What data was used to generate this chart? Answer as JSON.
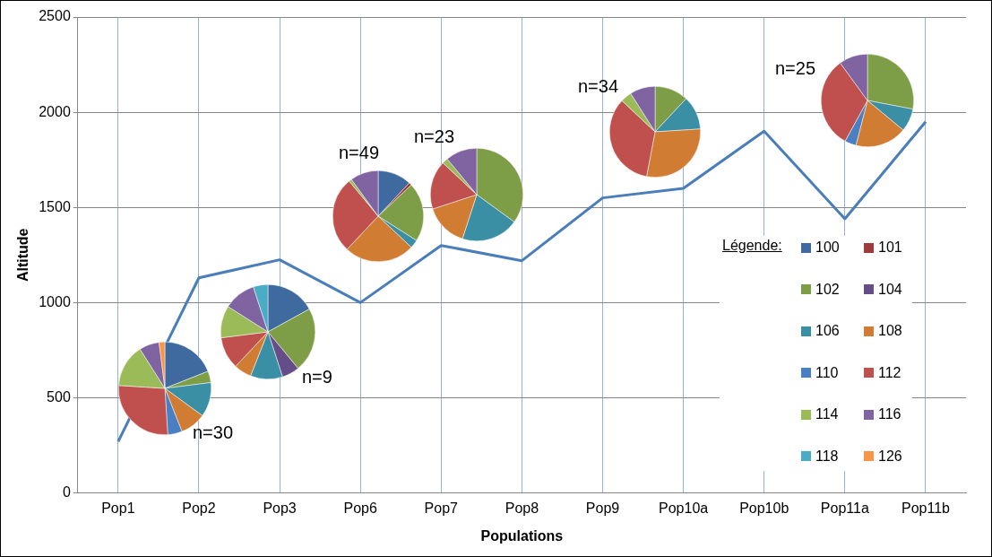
{
  "chart_data": [
    {
      "type": "line",
      "xlabel": "Populations",
      "ylabel": "Altitude",
      "categories": [
        "Pop1",
        "Pop2",
        "Pop3",
        "Pop6",
        "Pop7",
        "Pop8",
        "Pop9",
        "Pop10a",
        "Pop10b",
        "Pop11a",
        "Pop11b"
      ],
      "values": [
        270,
        1130,
        1225,
        1000,
        1300,
        1220,
        1550,
        1600,
        1900,
        1440,
        1950
      ],
      "color": "#4a7ebb",
      "ylim": [
        0,
        2500
      ],
      "yticks": [
        0,
        500,
        1000,
        1500,
        2000,
        2500
      ],
      "grid": true,
      "marker": "none",
      "legend": false
    },
    {
      "type": "pie",
      "legend": "right",
      "legend_title": "Légende:",
      "categories": [
        "100",
        "101",
        "102",
        "104",
        "106",
        "108",
        "110",
        "112",
        "114",
        "116",
        "118",
        "126"
      ],
      "colors": [
        "#3e6aa0",
        "#a0393a",
        "#7d9d46",
        "#654e87",
        "#3a8fa5",
        "#d07c33",
        "#4a7fc2",
        "#c0504d",
        "#9bbb59",
        "#8064a2",
        "#4bacc6",
        "#f79646"
      ],
      "series": [
        {
          "name": "n=30",
          "values": [
            19,
            0,
            4,
            0,
            12,
            9,
            5,
            27,
            15,
            7,
            0,
            2
          ]
        },
        {
          "name": "n=9",
          "values": [
            17,
            0,
            22,
            6,
            11,
            6,
            0,
            11,
            11,
            11,
            5,
            0
          ]
        },
        {
          "name": "n=49",
          "values": [
            12,
            1,
            21,
            0,
            3,
            25,
            0,
            27,
            1,
            10,
            0,
            0
          ]
        },
        {
          "name": "n=23",
          "values": [
            0,
            0,
            35,
            0,
            20,
            15,
            0,
            17,
            2,
            11,
            0,
            0
          ]
        },
        {
          "name": "n=34",
          "values": [
            0,
            0,
            12,
            0,
            12,
            29,
            0,
            34,
            4,
            9,
            0,
            0
          ]
        },
        {
          "name": "n=25",
          "values": [
            0,
            0,
            28,
            0,
            8,
            18,
            4,
            32,
            0,
            10,
            0,
            0
          ]
        }
      ]
    }
  ]
}
